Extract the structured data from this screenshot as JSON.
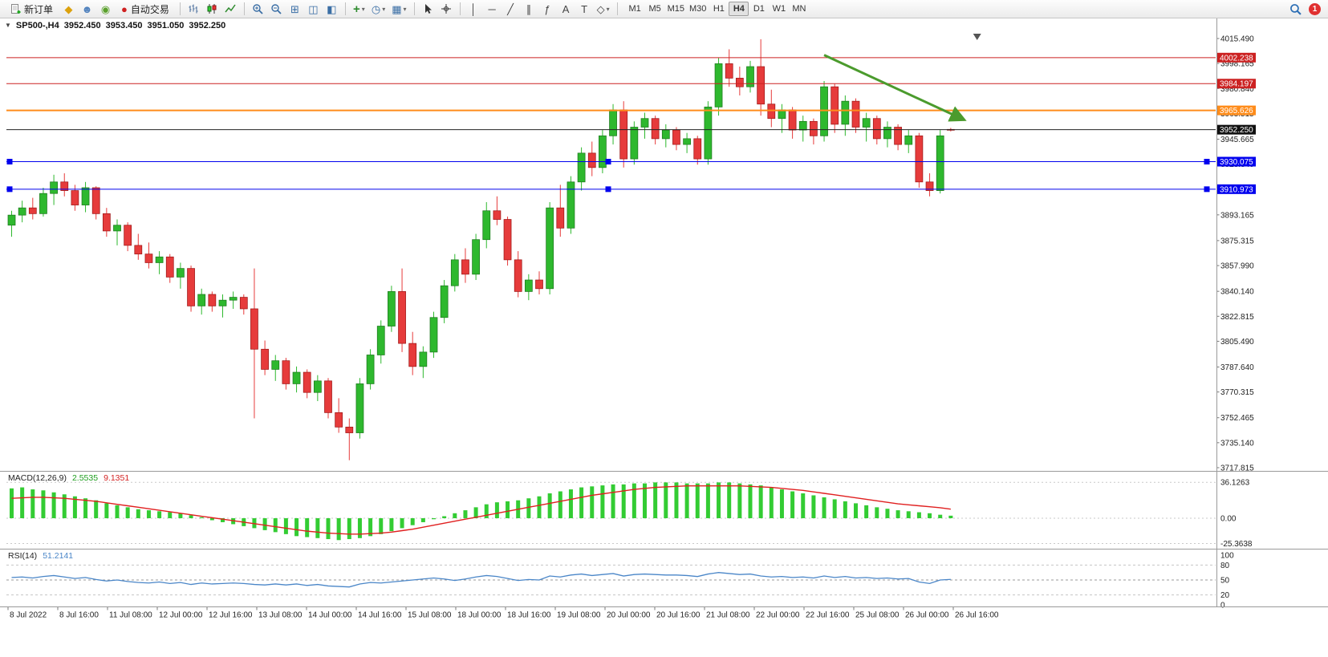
{
  "toolbar": {
    "items": [
      {
        "type": "button",
        "name": "new-order-button",
        "icon": "doc-plus",
        "label": "新订单"
      },
      {
        "type": "icon",
        "name": "coins-icon",
        "glyph": "◆",
        "color": "#dca10d"
      },
      {
        "type": "icon",
        "name": "profile-icon",
        "glyph": "☻",
        "color": "#4f81bd"
      },
      {
        "type": "icon",
        "name": "community-icon",
        "glyph": "◉",
        "color": "#5aa02c"
      },
      {
        "type": "button",
        "name": "autotrading-button",
        "glyph": "●",
        "glyph_color": "#cf2020",
        "label": "自动交易"
      },
      {
        "type": "sep"
      },
      {
        "type": "icon",
        "name": "bar-chart-icon",
        "icon": "bar-chart"
      },
      {
        "type": "icon",
        "name": "candlestick-chart-icon",
        "icon": "candle-chart"
      },
      {
        "type": "icon",
        "name": "line-chart-icon",
        "icon": "line-chart"
      },
      {
        "type": "sep"
      },
      {
        "type": "icon",
        "name": "zoom-in-icon",
        "icon": "zoom-in"
      },
      {
        "type": "icon",
        "name": "zoom-out-icon",
        "icon": "zoom-out"
      },
      {
        "type": "icon",
        "name": "tile-windows-icon",
        "glyph": "⊞",
        "color": "#3a6ea5"
      },
      {
        "type": "icon",
        "name": "new-chart-icon",
        "glyph": "◫",
        "color": "#3a6ea5"
      },
      {
        "type": "icon",
        "name": "profiles-icon",
        "glyph": "◧",
        "color": "#3a6ea5"
      },
      {
        "type": "sep"
      },
      {
        "type": "icon",
        "name": "add-indicator-button",
        "glyph": "+",
        "color": "#2e8b2e",
        "dropdown": true
      },
      {
        "type": "icon",
        "name": "period-button",
        "glyph": "◷",
        "color": "#3a6ea5",
        "dropdown": true
      },
      {
        "type": "icon",
        "name": "template-button",
        "glyph": "▦",
        "color": "#3a6ea5",
        "dropdown": true
      },
      {
        "type": "sep"
      },
      {
        "type": "icon",
        "name": "cursor-icon",
        "icon": "cursor"
      },
      {
        "type": "icon",
        "name": "crosshair-icon",
        "icon": "crosshair"
      },
      {
        "type": "sep"
      },
      {
        "type": "icon",
        "name": "vertical-line-icon",
        "glyph": "│",
        "color": "#444"
      },
      {
        "type": "icon",
        "name": "horizontal-line-icon",
        "glyph": "─",
        "color": "#444"
      },
      {
        "type": "icon",
        "name": "trendline-icon",
        "glyph": "╱",
        "color": "#444"
      },
      {
        "type": "icon",
        "name": "channel-icon",
        "glyph": "∥",
        "color": "#444"
      },
      {
        "type": "icon",
        "name": "fibonacci-icon",
        "glyph": "ƒ",
        "color": "#444"
      },
      {
        "type": "icon",
        "name": "text-icon",
        "glyph": "A",
        "color": "#444"
      },
      {
        "type": "icon",
        "name": "arrow-label-icon",
        "glyph": "T",
        "color": "#444"
      },
      {
        "type": "icon",
        "name": "shapes-button",
        "glyph": "◇",
        "color": "#444",
        "dropdown": true
      },
      {
        "type": "sep"
      },
      {
        "type": "timeframes",
        "name": "timeframe-group",
        "buttons": [
          "M1",
          "M5",
          "M15",
          "M30",
          "H1",
          "H4",
          "D1",
          "W1",
          "MN"
        ],
        "active": "H4"
      },
      {
        "type": "spacer"
      },
      {
        "type": "icon",
        "name": "search-icon",
        "icon": "search"
      },
      {
        "type": "badge",
        "name": "notification-badge",
        "label": "1",
        "color": "#e03030"
      }
    ]
  },
  "chart": {
    "collapse_glyph": "▼",
    "symbol_period": "SP500-,H4",
    "open": "3952.450",
    "high": "3953.450",
    "low": "3951.050",
    "close": "3952.250"
  },
  "indicators": {
    "macd": {
      "name": "MACD(12,26,9)",
      "main_value": "2.5535",
      "signal_value": "9.1351"
    },
    "rsi": {
      "name": "RSI(14)",
      "value": "51.2141"
    }
  },
  "chart_data": [
    {
      "type": "candlestick",
      "symbol": "SP500-",
      "timeframe": "H4",
      "current_ohlc": {
        "open": 3952.45,
        "high": 3953.45,
        "low": 3951.05,
        "close": 3952.25
      },
      "price_range": [
        3717.815,
        4015.49
      ],
      "up_color": "#2eb82e",
      "down_color": "#e63b3b",
      "y_axis_labels": [
        "4015.490",
        "3998.165",
        "3980.840",
        "3963.515",
        "3945.665",
        "3928.340",
        "3911.015",
        "3893.165",
        "3875.315",
        "3857.990",
        "3840.140",
        "3822.815",
        "3805.490",
        "3787.640",
        "3770.315",
        "3752.465",
        "3735.140",
        "3717.815"
      ],
      "x_labels": [
        "8 Jul 2022",
        "8 Jul 16:00",
        "11 Jul 08:00",
        "12 Jul 00:00",
        "12 Jul 16:00",
        "13 Jul 08:00",
        "14 Jul 00:00",
        "14 Jul 16:00",
        "15 Jul 08:00",
        "18 Jul 00:00",
        "18 Jul 16:00",
        "19 Jul 08:00",
        "20 Jul 00:00",
        "20 Jul 16:00",
        "21 Jul 08:00",
        "22 Jul 00:00",
        "22 Jul 16:00",
        "25 Jul 08:00",
        "26 Jul 00:00",
        "26 Jul 16:00"
      ],
      "candles": [
        [
          3886,
          3896,
          3878,
          3893
        ],
        [
          3893,
          3903,
          3888,
          3898
        ],
        [
          3898,
          3905,
          3890,
          3894
        ],
        [
          3894,
          3912,
          3892,
          3908
        ],
        [
          3908,
          3921,
          3900,
          3916
        ],
        [
          3916,
          3922,
          3906,
          3910
        ],
        [
          3910,
          3914,
          3896,
          3900
        ],
        [
          3900,
          3916,
          3895,
          3912
        ],
        [
          3912,
          3913,
          3890,
          3894
        ],
        [
          3894,
          3898,
          3878,
          3882
        ],
        [
          3882,
          3890,
          3872,
          3886
        ],
        [
          3886,
          3888,
          3868,
          3872
        ],
        [
          3872,
          3880,
          3862,
          3866
        ],
        [
          3866,
          3874,
          3856,
          3860
        ],
        [
          3860,
          3868,
          3852,
          3864
        ],
        [
          3864,
          3866,
          3846,
          3850
        ],
        [
          3850,
          3860,
          3842,
          3856
        ],
        [
          3856,
          3858,
          3826,
          3830
        ],
        [
          3830,
          3842,
          3824,
          3838
        ],
        [
          3838,
          3840,
          3826,
          3830
        ],
        [
          3830,
          3838,
          3822,
          3834
        ],
        [
          3834,
          3840,
          3828,
          3836
        ],
        [
          3836,
          3838,
          3824,
          3828
        ],
        [
          3828,
          3856,
          3752,
          3800
        ],
        [
          3800,
          3806,
          3782,
          3786
        ],
        [
          3786,
          3796,
          3778,
          3792
        ],
        [
          3792,
          3794,
          3772,
          3776
        ],
        [
          3776,
          3788,
          3770,
          3784
        ],
        [
          3784,
          3786,
          3766,
          3770
        ],
        [
          3770,
          3782,
          3764,
          3778
        ],
        [
          3778,
          3780,
          3752,
          3756
        ],
        [
          3756,
          3766,
          3742,
          3746
        ],
        [
          3746,
          3752,
          3723,
          3742
        ],
        [
          3742,
          3780,
          3738,
          3776
        ],
        [
          3776,
          3800,
          3772,
          3796
        ],
        [
          3796,
          3820,
          3790,
          3816
        ],
        [
          3816,
          3844,
          3812,
          3840
        ],
        [
          3840,
          3856,
          3798,
          3804
        ],
        [
          3804,
          3812,
          3782,
          3788
        ],
        [
          3788,
          3802,
          3780,
          3798
        ],
        [
          3798,
          3826,
          3794,
          3822
        ],
        [
          3822,
          3848,
          3818,
          3844
        ],
        [
          3844,
          3866,
          3840,
          3862
        ],
        [
          3862,
          3870,
          3846,
          3852
        ],
        [
          3852,
          3880,
          3848,
          3876
        ],
        [
          3876,
          3902,
          3870,
          3896
        ],
        [
          3896,
          3906,
          3886,
          3890
        ],
        [
          3890,
          3892,
          3858,
          3862
        ],
        [
          3862,
          3868,
          3836,
          3840
        ],
        [
          3840,
          3852,
          3834,
          3848
        ],
        [
          3848,
          3854,
          3838,
          3842
        ],
        [
          3842,
          3902,
          3838,
          3898
        ],
        [
          3898,
          3914,
          3878,
          3884
        ],
        [
          3884,
          3920,
          3880,
          3916
        ],
        [
          3916,
          3940,
          3910,
          3936
        ],
        [
          3936,
          3944,
          3920,
          3926
        ],
        [
          3926,
          3952,
          3922,
          3948
        ],
        [
          3948,
          3970,
          3942,
          3966
        ],
        [
          3966,
          3972,
          3926,
          3932
        ],
        [
          3932,
          3958,
          3928,
          3954
        ],
        [
          3954,
          3964,
          3946,
          3960
        ],
        [
          3960,
          3962,
          3942,
          3946
        ],
        [
          3946,
          3956,
          3940,
          3952
        ],
        [
          3952,
          3954,
          3938,
          3942
        ],
        [
          3942,
          3950,
          3936,
          3946
        ],
        [
          3946,
          3948,
          3928,
          3932
        ],
        [
          3932,
          3972,
          3928,
          3968
        ],
        [
          3968,
          4002,
          3962,
          3998
        ],
        [
          3998,
          4008,
          3982,
          3988
        ],
        [
          3988,
          3996,
          3976,
          3982
        ],
        [
          3982,
          4000,
          3978,
          3996
        ],
        [
          3996,
          4015,
          3962,
          3970
        ],
        [
          3970,
          3980,
          3954,
          3960
        ],
        [
          3960,
          3970,
          3950,
          3966
        ],
        [
          3966,
          3968,
          3946,
          3952
        ],
        [
          3952,
          3962,
          3944,
          3958
        ],
        [
          3958,
          3960,
          3942,
          3948
        ],
        [
          3948,
          3986,
          3944,
          3982
        ],
        [
          3982,
          3984,
          3950,
          3956
        ],
        [
          3956,
          3976,
          3948,
          3972
        ],
        [
          3972,
          3974,
          3950,
          3954
        ],
        [
          3954,
          3964,
          3944,
          3960
        ],
        [
          3960,
          3962,
          3942,
          3946
        ],
        [
          3946,
          3958,
          3940,
          3954
        ],
        [
          3954,
          3956,
          3938,
          3942
        ],
        [
          3942,
          3952,
          3936,
          3948
        ],
        [
          3948,
          3950,
          3912,
          3916
        ],
        [
          3916,
          3922,
          3906,
          3910
        ],
        [
          3910,
          3952,
          3908,
          3948
        ],
        [
          3952.45,
          3953.45,
          3951.05,
          3952.25
        ]
      ],
      "h_lines": [
        {
          "name": "resistance-line-1",
          "price": 4002.238,
          "label": "4002.238",
          "color": "#cc2222",
          "width": 1
        },
        {
          "name": "resistance-line-2",
          "price": 3984.197,
          "label": "3984.197",
          "color": "#cc2222",
          "width": 1
        },
        {
          "name": "orange-level-line",
          "price": 3965.626,
          "label": "3965.626",
          "color": "#ff8c1a",
          "width": 2
        },
        {
          "name": "current-price-line",
          "price": 3952.25,
          "label": "3952.250",
          "color": "#222222",
          "width": 1,
          "badge_bg": "#111111"
        },
        {
          "name": "support-line-1",
          "price": 3930.075,
          "label": "3930.075",
          "color": "#0000ee",
          "width": 1,
          "handles": true
        },
        {
          "name": "support-line-2",
          "price": 3910.973,
          "label": "3910.973",
          "color": "#0000ee",
          "width": 1,
          "handles": true
        }
      ],
      "annotations": [
        {
          "name": "trend-arrow",
          "type": "arrow",
          "from_bar": 77,
          "from_price": 4004,
          "to_bar": 90.3,
          "to_price": 3959,
          "color": "#4b9b2d"
        }
      ],
      "shift_marker_bar": 91.5
    },
    {
      "type": "macd",
      "name": "MACD(12,26,9)",
      "main_value": 2.5535,
      "signal_value": 9.1351,
      "histogram_color": "#33cc33",
      "signal_color": "#e02020",
      "y_axis_labels": [
        "36.1263",
        "0.00",
        "-25.3638"
      ],
      "y_values": [
        36.1263,
        0,
        -25.3638
      ],
      "histogram": [
        30,
        31,
        29,
        28,
        26,
        24,
        22,
        20,
        18,
        15,
        13,
        11,
        9,
        8,
        7,
        6,
        5,
        3,
        1,
        -2,
        -4,
        -6,
        -8,
        -10,
        -12,
        -14,
        -16,
        -18,
        -19,
        -20,
        -21,
        -22,
        -21,
        -20,
        -18,
        -16,
        -13,
        -10,
        -7,
        -4,
        -1,
        2,
        5,
        8,
        11,
        14,
        16,
        17,
        18,
        20,
        22,
        25,
        27,
        29,
        31,
        32,
        33,
        34,
        34,
        35,
        35,
        36,
        36,
        36,
        35,
        35,
        35,
        36,
        36,
        35,
        34,
        33,
        31,
        29,
        27,
        25,
        23,
        21,
        19,
        17,
        15,
        13,
        11,
        9.5,
        8,
        7,
        6,
        5,
        3.5,
        2.5535
      ],
      "signal": [
        20,
        20.5,
        21,
        21,
        20.5,
        20,
        19,
        18,
        17,
        15.5,
        14,
        12.5,
        11,
        9.5,
        8,
        6.5,
        5,
        3.5,
        2,
        0.5,
        -1,
        -2.5,
        -4,
        -5.5,
        -7,
        -8.5,
        -10,
        -11.5,
        -13,
        -14,
        -15,
        -15.5,
        -16,
        -16,
        -15.5,
        -15,
        -14,
        -12.5,
        -11,
        -9,
        -7,
        -5,
        -3,
        -1,
        1,
        3,
        5,
        7,
        9,
        11,
        13,
        15,
        17,
        19,
        21,
        23,
        24.5,
        26,
        27.5,
        29,
        30,
        31,
        31.5,
        32,
        32.5,
        32.5,
        32.5,
        32.5,
        32.5,
        32.5,
        32,
        31.5,
        31,
        30,
        29,
        28,
        26.5,
        25,
        23.5,
        22,
        20.5,
        19,
        17.5,
        16,
        14.5,
        13.5,
        12.5,
        11.5,
        10.5,
        9.1351
      ]
    },
    {
      "type": "rsi",
      "name": "RSI(14)",
      "current_value": 51.2141,
      "line_color": "#4a86c8",
      "range": [
        0,
        100
      ],
      "levels": [
        80,
        50,
        20
      ],
      "y_axis_labels": [
        "100",
        "80",
        "50",
        "20",
        "0"
      ],
      "y_values": [
        100,
        80,
        50,
        20,
        0
      ],
      "values": [
        55,
        56,
        54,
        57,
        59,
        56,
        53,
        55,
        51,
        48,
        50,
        47,
        45,
        44,
        46,
        43,
        45,
        41,
        44,
        42,
        43,
        44,
        43,
        41,
        40,
        42,
        40,
        42,
        39,
        41,
        38,
        37,
        36,
        42,
        45,
        44,
        46,
        48,
        50,
        52,
        54,
        52,
        49,
        52,
        56,
        59,
        57,
        53,
        49,
        51,
        50,
        58,
        56,
        60,
        62,
        59,
        61,
        63,
        58,
        61,
        62,
        61,
        60,
        60,
        59,
        57,
        62,
        65,
        63,
        61,
        62,
        58,
        56,
        57,
        55,
        56,
        54,
        58,
        55,
        57,
        54,
        55,
        53,
        54,
        52,
        53,
        46,
        43,
        50,
        51.2141
      ]
    }
  ]
}
